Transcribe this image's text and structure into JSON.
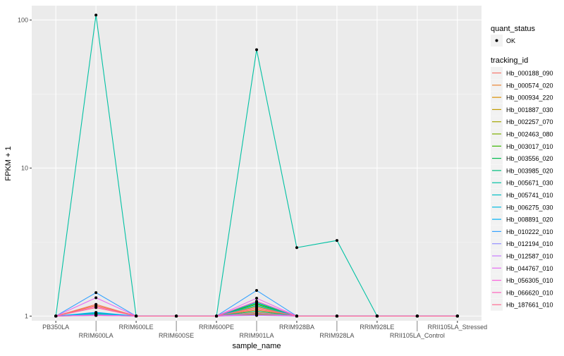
{
  "chart_data": {
    "type": "line",
    "xlabel": "sample_name",
    "ylabel": "FPKM + 1",
    "yscale": "log10",
    "ylim": [
      0.93,
      125
    ],
    "yticks": [
      1,
      10,
      100
    ],
    "ytick_labels": [
      "1",
      "10",
      "100"
    ],
    "grid": true,
    "legend_placement": "right",
    "categories": [
      "PB350LA",
      "RRIM600LA",
      "RRIM600LE",
      "RRIM600SE",
      "RRIM600PE",
      "RRIM901LA",
      "RRIM928BA",
      "RRIM928LA",
      "RRIM928LE",
      "RRII105LA_Control",
      "RRII105LA_Stressed"
    ],
    "point_legend": {
      "title": "quant_status",
      "entries": [
        "OK"
      ]
    },
    "line_legend_title": "tracking_id",
    "series": [
      {
        "name": "Hb_000188_090",
        "color": "#F8766D",
        "values": [
          1,
          1.2,
          1,
          1,
          1,
          1.12,
          1,
          1,
          1,
          1,
          1
        ]
      },
      {
        "name": "Hb_000574_020",
        "color": "#EA8331",
        "values": [
          1,
          1.18,
          1,
          1,
          1,
          1.1,
          1,
          1,
          1,
          1,
          1
        ]
      },
      {
        "name": "Hb_000934_220",
        "color": "#D89000",
        "values": [
          1,
          1.02,
          1,
          1,
          1,
          1.06,
          1,
          1,
          1,
          1,
          1
        ]
      },
      {
        "name": "Hb_001887_030",
        "color": "#C09B00",
        "values": [
          1,
          1.03,
          1,
          1,
          1,
          1.04,
          1,
          1,
          1,
          1,
          1
        ]
      },
      {
        "name": "Hb_002257_070",
        "color": "#A3A500",
        "values": [
          1,
          1.02,
          1,
          1,
          1,
          1.16,
          1,
          1,
          1,
          1,
          1
        ]
      },
      {
        "name": "Hb_002463_080",
        "color": "#7CAE00",
        "values": [
          1,
          1.01,
          1,
          1,
          1,
          1.03,
          1,
          1,
          1,
          1,
          1
        ]
      },
      {
        "name": "Hb_003017_010",
        "color": "#39B600",
        "values": [
          1,
          1.02,
          1,
          1,
          1,
          1.2,
          1,
          1,
          1,
          1,
          1
        ]
      },
      {
        "name": "Hb_003556_020",
        "color": "#00BB4E",
        "values": [
          1,
          1.04,
          1,
          1,
          1,
          1.22,
          1,
          1,
          1,
          1,
          1
        ]
      },
      {
        "name": "Hb_003985_020",
        "color": "#00BF7D",
        "values": [
          1,
          1.05,
          1,
          1,
          1,
          1.08,
          1,
          1,
          1,
          1,
          1
        ]
      },
      {
        "name": "Hb_005671_030",
        "color": "#00C1A3",
        "values": [
          1,
          108,
          1,
          1,
          1,
          63,
          2.9,
          3.24,
          1,
          1,
          1
        ]
      },
      {
        "name": "Hb_005741_010",
        "color": "#00BFC4",
        "values": [
          1,
          1.05,
          1,
          1,
          1,
          1.24,
          1,
          1,
          1,
          1,
          1
        ]
      },
      {
        "name": "Hb_006275_030",
        "color": "#00BAE0",
        "values": [
          1,
          1.03,
          1,
          1,
          1,
          1.18,
          1,
          1,
          1,
          1,
          1
        ]
      },
      {
        "name": "Hb_008891_020",
        "color": "#00B0F6",
        "values": [
          1,
          1.06,
          1,
          1,
          1,
          1.02,
          1,
          1,
          1,
          1,
          1
        ]
      },
      {
        "name": "Hb_010222_010",
        "color": "#35A2FF",
        "values": [
          1,
          1.44,
          1,
          1,
          1,
          1.49,
          1,
          1,
          1,
          1,
          1
        ]
      },
      {
        "name": "Hb_012194_010",
        "color": "#9590FF",
        "values": [
          1,
          1.01,
          1,
          1,
          1,
          1.01,
          1,
          1,
          1,
          1,
          1
        ]
      },
      {
        "name": "Hb_012587_010",
        "color": "#C77CFF",
        "values": [
          1,
          1.02,
          1,
          1,
          1,
          1.05,
          1,
          1,
          1,
          1,
          1
        ]
      },
      {
        "name": "Hb_044767_010",
        "color": "#E76BF3",
        "values": [
          1,
          1.33,
          1,
          1,
          1,
          1.32,
          1,
          1,
          1,
          1,
          1
        ]
      },
      {
        "name": "Hb_056305_010",
        "color": "#FA62DB",
        "values": [
          1,
          1.01,
          1,
          1,
          1,
          1.02,
          1,
          1,
          1,
          1,
          1
        ]
      },
      {
        "name": "Hb_066620_010",
        "color": "#FF62BC",
        "values": [
          1,
          1.16,
          1,
          1,
          1,
          1.26,
          1,
          1,
          1,
          1,
          1
        ]
      },
      {
        "name": "Hb_187661_010",
        "color": "#FF6C91",
        "values": [
          1,
          1.14,
          1,
          1,
          1,
          1.14,
          1,
          1,
          1,
          1,
          1
        ]
      }
    ]
  }
}
